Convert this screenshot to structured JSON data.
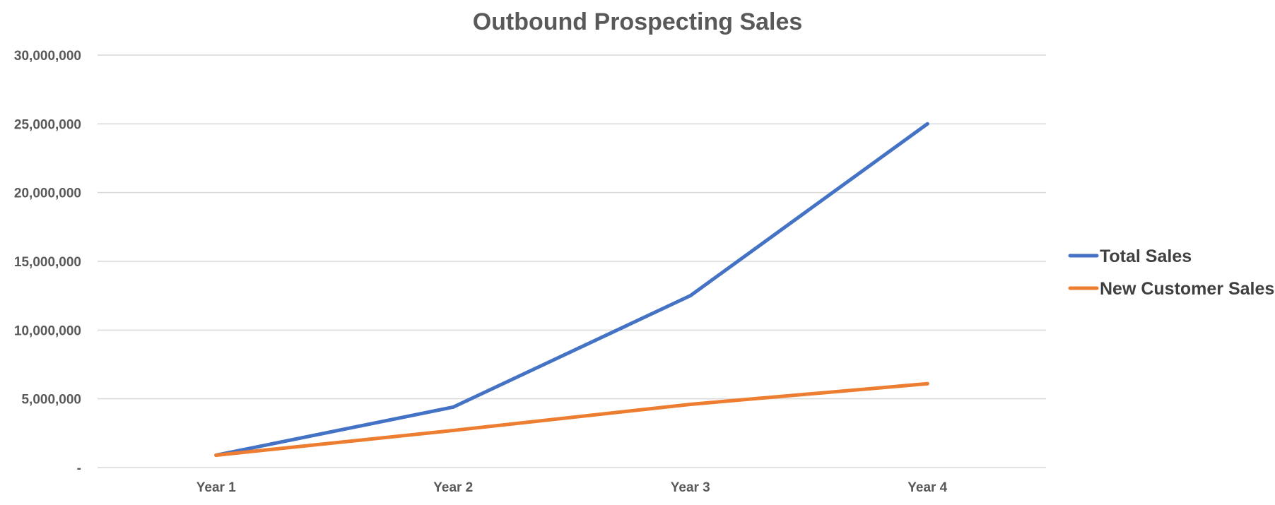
{
  "chart_data": {
    "type": "line",
    "title": "Outbound Prospecting Sales",
    "xlabel": "",
    "ylabel": "",
    "categories": [
      "Year 1",
      "Year 2",
      "Year 3",
      "Year 4"
    ],
    "series": [
      {
        "name": "Total Sales",
        "color": "#4472C4",
        "values": [
          900000,
          4400000,
          12500000,
          25000000
        ]
      },
      {
        "name": "New Customer Sales",
        "color": "#ED7D31",
        "values": [
          900000,
          2700000,
          4600000,
          6100000
        ]
      }
    ],
    "ylim": [
      0,
      30000000
    ],
    "yticks": [
      0,
      5000000,
      10000000,
      15000000,
      20000000,
      25000000,
      30000000
    ],
    "ytick_labels": [
      "-",
      "5,000,000",
      "10,000,000",
      "15,000,000",
      "20,000,000",
      "25,000,000",
      "30,000,000"
    ],
    "grid": true,
    "legend_position": "right"
  }
}
